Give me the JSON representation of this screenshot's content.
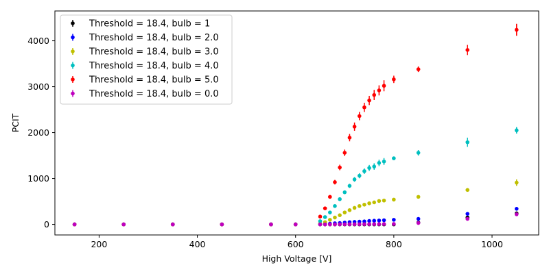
{
  "chart_data": {
    "type": "scatter",
    "xlabel": "High Voltage [V]",
    "ylabel": "PCIT",
    "xlim": [
      110,
      1095
    ],
    "ylim": [
      -230,
      4650
    ],
    "xticks": [
      200,
      400,
      600,
      800,
      1000
    ],
    "yticks": [
      0,
      1000,
      2000,
      3000,
      4000
    ],
    "grid": false,
    "legend_position": "upper-left",
    "series": [
      {
        "name": "Threshold = 18.4, bulb = 1",
        "color": "#000000",
        "x": [
          150,
          250,
          350,
          450,
          550,
          600,
          650,
          660,
          670,
          680,
          690,
          700,
          710,
          720,
          730,
          740,
          750,
          760,
          770,
          780,
          800,
          850,
          950,
          1050
        ],
        "y": [
          0,
          0,
          0,
          0,
          0,
          0,
          0,
          0,
          0,
          0,
          0,
          0,
          0,
          0,
          0,
          0,
          0,
          0,
          0,
          0,
          0,
          40,
          150,
          240
        ],
        "err": [
          0,
          0,
          0,
          0,
          0,
          0,
          0,
          0,
          0,
          0,
          0,
          0,
          0,
          0,
          0,
          0,
          0,
          0,
          0,
          0,
          0,
          10,
          25,
          40
        ]
      },
      {
        "name": "Threshold = 18.4, bulb = 2.0",
        "color": "#0000ff",
        "x": [
          150,
          250,
          350,
          450,
          550,
          600,
          650,
          660,
          670,
          680,
          690,
          700,
          710,
          720,
          730,
          740,
          750,
          760,
          770,
          780,
          800,
          850,
          950,
          1050
        ],
        "y": [
          0,
          0,
          0,
          0,
          0,
          0,
          5,
          10,
          15,
          25,
          30,
          40,
          50,
          55,
          60,
          65,
          75,
          80,
          85,
          90,
          100,
          120,
          230,
          340
        ],
        "err": [
          0,
          0,
          0,
          0,
          0,
          0,
          2,
          3,
          3,
          4,
          5,
          5,
          6,
          6,
          7,
          7,
          8,
          8,
          9,
          9,
          10,
          15,
          25,
          35
        ]
      },
      {
        "name": "Threshold = 18.4, bulb = 3.0",
        "color": "#bfbf00",
        "x": [
          150,
          250,
          350,
          450,
          550,
          600,
          650,
          660,
          670,
          680,
          690,
          700,
          710,
          720,
          730,
          740,
          750,
          760,
          770,
          780,
          800,
          850,
          950,
          1050
        ],
        "y": [
          0,
          0,
          0,
          0,
          0,
          0,
          20,
          50,
          100,
          150,
          200,
          260,
          310,
          360,
          400,
          430,
          460,
          480,
          510,
          520,
          540,
          600,
          750,
          910
        ],
        "err": [
          0,
          0,
          0,
          0,
          0,
          0,
          5,
          8,
          12,
          15,
          18,
          20,
          22,
          24,
          26,
          28,
          30,
          32,
          34,
          36,
          30,
          35,
          40,
          70
        ]
      },
      {
        "name": "Threshold = 18.4, bulb = 4.0",
        "color": "#00bfbf",
        "x": [
          150,
          250,
          350,
          450,
          550,
          600,
          650,
          660,
          670,
          680,
          690,
          700,
          710,
          720,
          730,
          740,
          750,
          760,
          770,
          780,
          800,
          850,
          950,
          1050
        ],
        "y": [
          0,
          0,
          0,
          0,
          0,
          0,
          70,
          160,
          260,
          400,
          550,
          700,
          840,
          980,
          1060,
          1160,
          1230,
          1260,
          1340,
          1370,
          1440,
          1560,
          1790,
          2050
        ],
        "err": [
          0,
          0,
          0,
          0,
          0,
          0,
          10,
          20,
          25,
          30,
          35,
          40,
          45,
          50,
          55,
          60,
          65,
          70,
          70,
          75,
          30,
          60,
          100,
          70
        ]
      },
      {
        "name": "Threshold = 18.4, bulb = 5.0",
        "color": "#ff0000",
        "x": [
          150,
          250,
          350,
          450,
          550,
          600,
          650,
          660,
          670,
          680,
          690,
          700,
          710,
          720,
          730,
          740,
          750,
          760,
          770,
          780,
          800,
          850,
          950,
          1050
        ],
        "y": [
          0,
          0,
          0,
          0,
          0,
          0,
          170,
          350,
          600,
          920,
          1240,
          1560,
          1890,
          2130,
          2360,
          2550,
          2700,
          2820,
          2920,
          3020,
          3160,
          3380,
          3800,
          4240
        ],
        "err": [
          0,
          0,
          0,
          0,
          0,
          0,
          15,
          30,
          40,
          50,
          60,
          70,
          80,
          90,
          90,
          100,
          100,
          110,
          110,
          120,
          80,
          60,
          110,
          130
        ]
      },
      {
        "name": "Threshold = 18.4, bulb = 0.0",
        "color": "#bf00bf",
        "x": [
          150,
          250,
          350,
          450,
          550,
          600,
          650,
          660,
          670,
          680,
          690,
          700,
          710,
          720,
          730,
          740,
          750,
          760,
          770,
          780,
          800,
          850,
          950,
          1050
        ],
        "y": [
          0,
          0,
          0,
          0,
          0,
          0,
          0,
          0,
          0,
          0,
          2,
          3,
          4,
          5,
          5,
          6,
          6,
          7,
          7,
          8,
          10,
          30,
          120,
          220
        ],
        "err": [
          0,
          0,
          0,
          0,
          0,
          0,
          0,
          0,
          0,
          0,
          1,
          1,
          1,
          1,
          1,
          1,
          1,
          1,
          1,
          1,
          2,
          5,
          15,
          25
        ]
      }
    ]
  }
}
